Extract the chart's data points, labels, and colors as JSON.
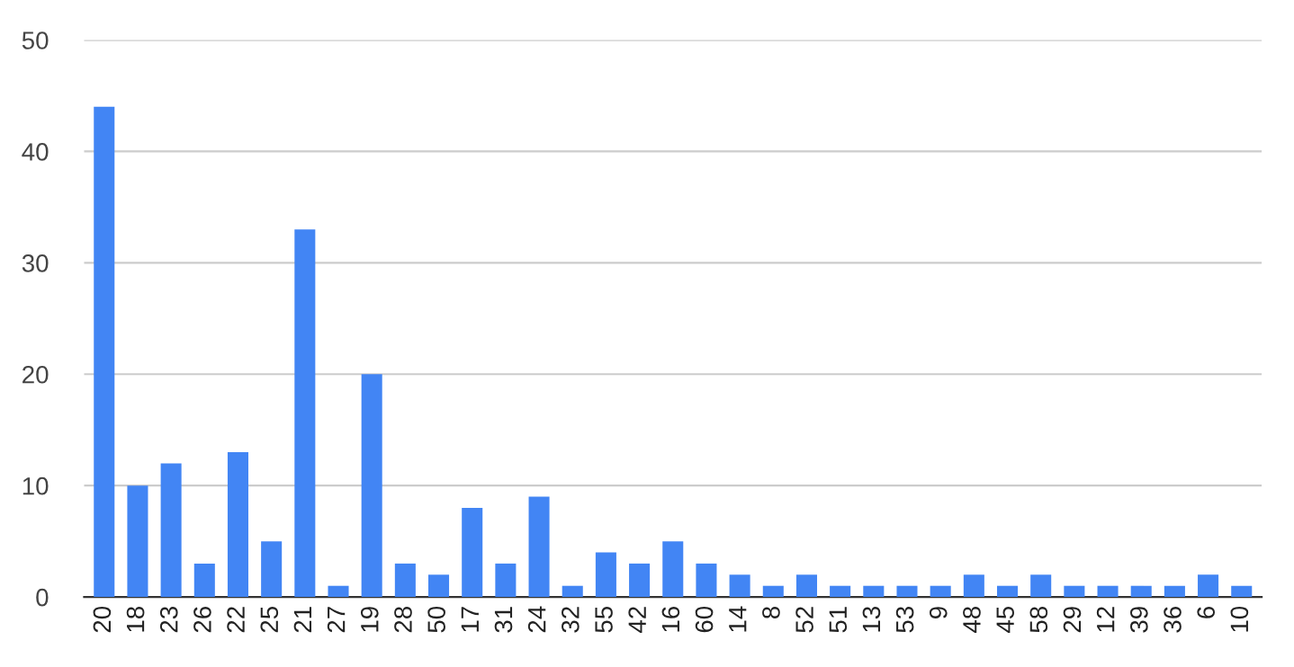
{
  "chart_data": {
    "type": "bar",
    "categories": [
      "20",
      "18",
      "23",
      "26",
      "22",
      "25",
      "21",
      "27",
      "19",
      "28",
      "50",
      "17",
      "31",
      "24",
      "32",
      "55",
      "42",
      "16",
      "60",
      "14",
      "8",
      "52",
      "51",
      "13",
      "53",
      "9",
      "48",
      "45",
      "58",
      "29",
      "12",
      "39",
      "36",
      "6",
      "10"
    ],
    "values": [
      44,
      10,
      12,
      3,
      13,
      5,
      33,
      1,
      20,
      3,
      2,
      8,
      3,
      9,
      1,
      4,
      3,
      5,
      3,
      2,
      1,
      2,
      1,
      1,
      1,
      1,
      2,
      1,
      2,
      1,
      1,
      1,
      1,
      2,
      1
    ],
    "color": "#4285f4",
    "ylim": [
      0,
      50
    ],
    "yticks": [
      0,
      10,
      20,
      30,
      40,
      50
    ],
    "grid": "y",
    "legend": false
  }
}
